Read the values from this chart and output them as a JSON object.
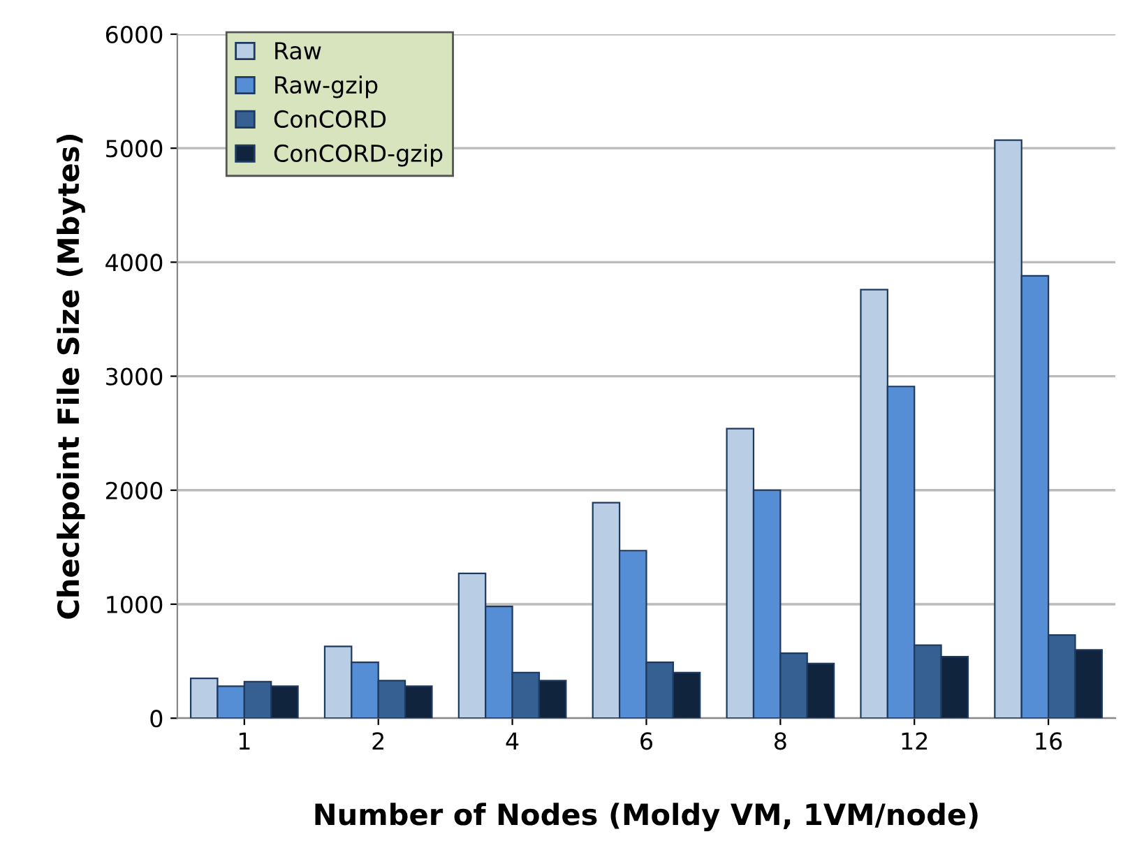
{
  "chart_data": {
    "type": "bar",
    "xlabel": "Number of Nodes (Moldy VM, 1VM/node)",
    "ylabel": "Checkpoint File Size (Mbytes)",
    "categories": [
      "1",
      "2",
      "4",
      "6",
      "8",
      "12",
      "16"
    ],
    "series": [
      {
        "name": "Raw",
        "color": "#b9cde5",
        "values": [
          350,
          630,
          1270,
          1890,
          2540,
          3760,
          5070
        ]
      },
      {
        "name": "Raw-gzip",
        "color": "#558ed5",
        "values": [
          280,
          490,
          980,
          1470,
          2000,
          2910,
          3880
        ]
      },
      {
        "name": "ConCORD",
        "color": "#376092",
        "values": [
          320,
          330,
          400,
          490,
          570,
          640,
          730
        ]
      },
      {
        "name": "ConCORD-gzip",
        "color": "#10243e",
        "values": [
          280,
          280,
          330,
          400,
          480,
          540,
          600
        ]
      }
    ],
    "ylim": [
      0,
      6000
    ],
    "yticks": [
      0,
      1000,
      2000,
      3000,
      4000,
      5000,
      6000
    ],
    "grid": "y",
    "legend": "top left"
  }
}
